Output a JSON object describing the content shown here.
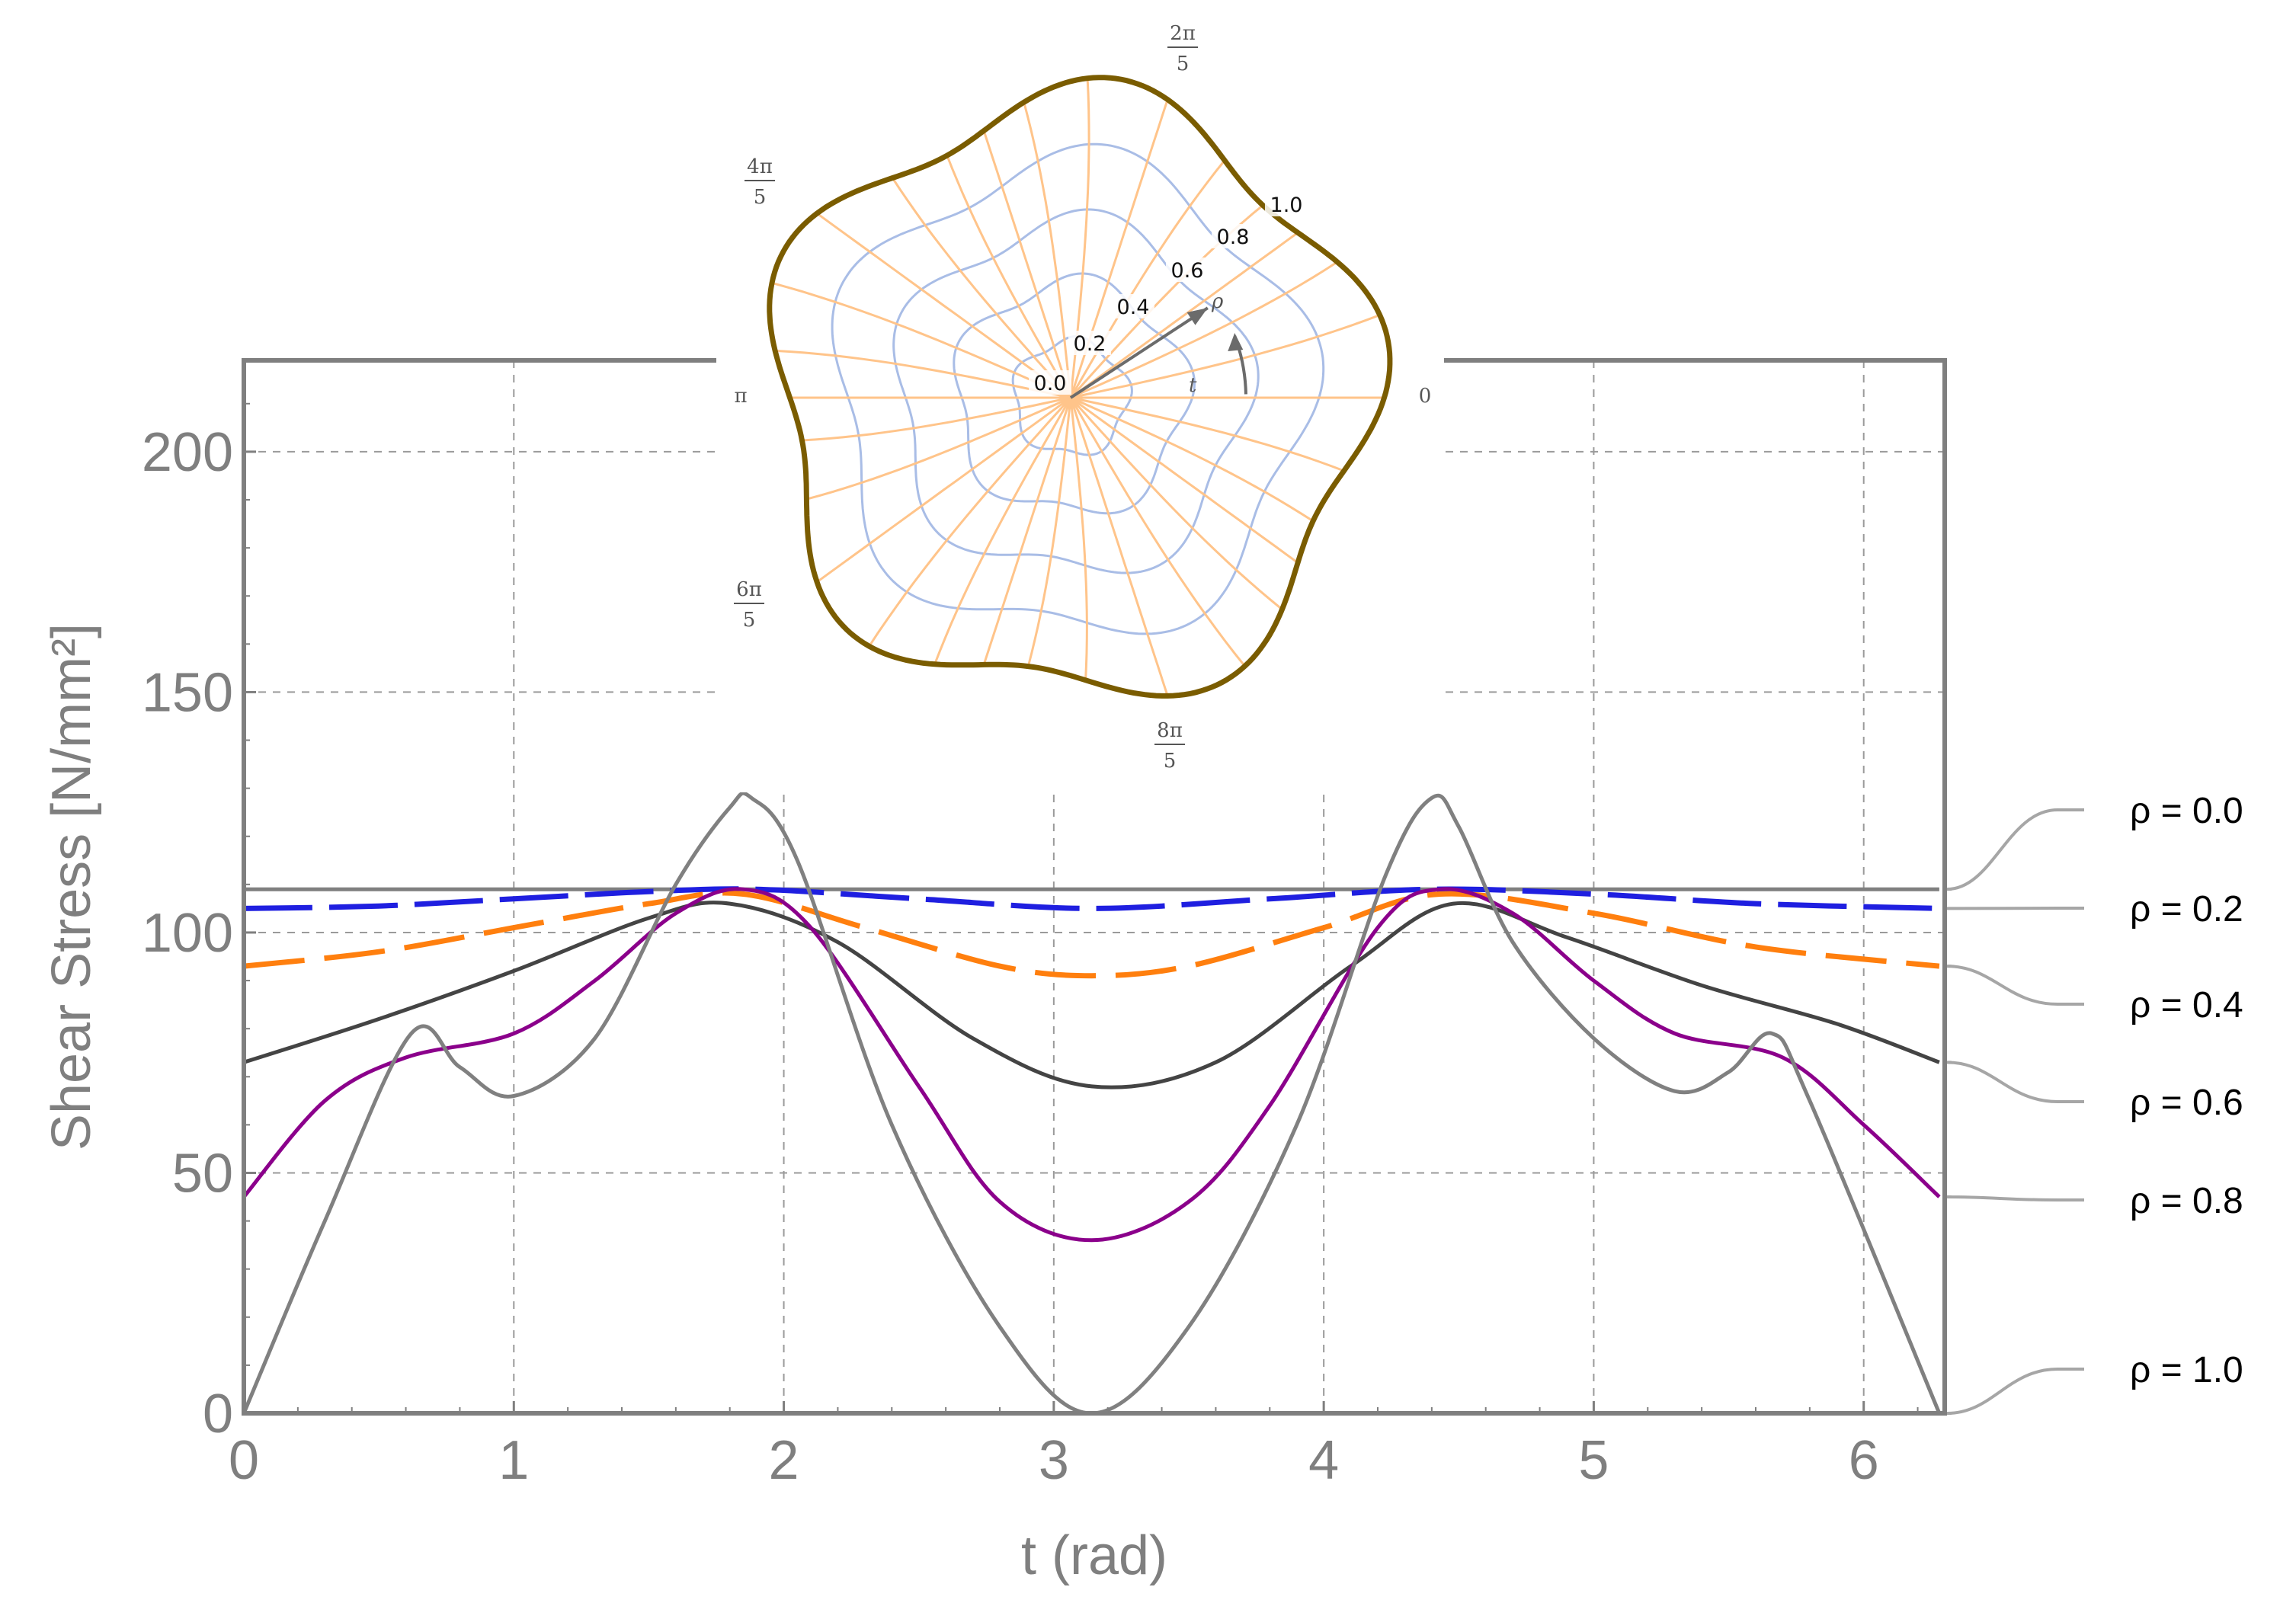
{
  "chart_data": [
    {
      "type": "line",
      "title": "",
      "xlabel": "t  (rad)",
      "ylabel": "Shear Stress [N/mm²]",
      "xlim": [
        0,
        6.3
      ],
      "ylim": [
        0,
        200
      ],
      "x_ticks": [
        "0",
        "1",
        "2",
        "3",
        "4",
        "5",
        "6"
      ],
      "y_ticks": [
        "0",
        "50",
        "100",
        "150",
        "200"
      ],
      "grid": true,
      "legend_position": "right",
      "series": [
        {
          "name": "ρ = 0.0",
          "color": "#7f7f7f",
          "style": "solid",
          "x": [
            0,
            1,
            2,
            3,
            4,
            5,
            6.28
          ],
          "y": [
            109,
            109,
            109,
            109,
            109,
            109,
            109
          ]
        },
        {
          "name": "ρ = 0.2",
          "color": "#1f1fe0",
          "style": "dashed",
          "x": [
            0,
            0.5,
            1.0,
            1.5,
            1.9,
            2.5,
            3.14,
            3.8,
            4.4,
            5.0,
            5.6,
            6.28
          ],
          "y": [
            105,
            105.5,
            107,
            108.5,
            109,
            107,
            105,
            107,
            109,
            108,
            106,
            105
          ]
        },
        {
          "name": "ρ = 0.4",
          "color": "#ff7f0e",
          "style": "dashed",
          "x": [
            0,
            0.5,
            1.0,
            1.5,
            1.85,
            2.3,
            2.8,
            3.14,
            3.5,
            4.0,
            4.43,
            5.0,
            5.6,
            6.28
          ],
          "y": [
            93,
            96,
            101,
            106,
            108,
            101,
            93,
            91,
            93,
            101,
            108,
            104,
            97,
            93
          ]
        },
        {
          "name": "ρ = 0.6",
          "color": "#444444",
          "style": "solid",
          "x": [
            0,
            0.5,
            1.0,
            1.5,
            1.8,
            2.2,
            2.7,
            3.14,
            3.6,
            4.1,
            4.48,
            4.9,
            5.4,
            5.9,
            6.28
          ],
          "y": [
            73,
            82,
            92,
            103,
            106,
            98,
            78,
            68,
            73,
            93,
            106,
            99,
            89,
            81,
            73
          ]
        },
        {
          "name": "ρ = 0.8",
          "color": "#8b008b",
          "style": "solid",
          "x": [
            0,
            0.3,
            0.6,
            1.0,
            1.3,
            1.6,
            1.85,
            2.1,
            2.5,
            2.8,
            3.14,
            3.5,
            3.8,
            4.2,
            4.43,
            4.7,
            5.0,
            5.3,
            5.7,
            6.0,
            6.28
          ],
          "y": [
            45,
            65,
            74,
            79,
            90,
            104,
            109,
            101,
            68,
            44,
            36,
            44,
            64,
            101,
            109,
            104,
            90,
            79,
            74,
            60,
            45
          ]
        },
        {
          "name": "ρ = 1.0",
          "color": "#808080",
          "style": "solid",
          "x": [
            0,
            0.3,
            0.62,
            0.8,
            1.0,
            1.3,
            1.6,
            1.8,
            1.88,
            2.05,
            2.4,
            2.8,
            3.14,
            3.5,
            3.9,
            4.23,
            4.4,
            4.5,
            4.7,
            5.0,
            5.3,
            5.5,
            5.66,
            5.8,
            6.28
          ],
          "y": [
            0,
            40,
            79,
            72,
            66,
            78,
            110,
            126,
            128,
            115,
            60,
            18,
            0,
            18,
            60,
            112,
            128,
            122,
            98,
            78,
            67,
            71,
            79,
            65,
            0
          ]
        }
      ]
    },
    {
      "type": "diagram",
      "title": "",
      "angle_labels": [
        {
          "num": "2π",
          "den": "5",
          "angle_deg": 72
        },
        {
          "num": "4π",
          "den": "5",
          "angle_deg": 144
        },
        {
          "num": "π",
          "den": "",
          "angle_deg": 180
        },
        {
          "num": "6π",
          "den": "5",
          "angle_deg": 216
        },
        {
          "num": "8π",
          "den": "5",
          "angle_deg": 288
        },
        {
          "num": "0",
          "den": "",
          "angle_deg": 0
        }
      ],
      "radial_labels": [
        "0.0",
        "0.2",
        "0.4",
        "0.6",
        "0.8",
        "1.0"
      ],
      "rho_symbol": "ρ",
      "t_symbol": "t",
      "lobes": 5,
      "boundary_color": "#7a5c00",
      "radial_grid_color": "#ffc48a",
      "ring_grid_color": "#a9bde6"
    }
  ]
}
